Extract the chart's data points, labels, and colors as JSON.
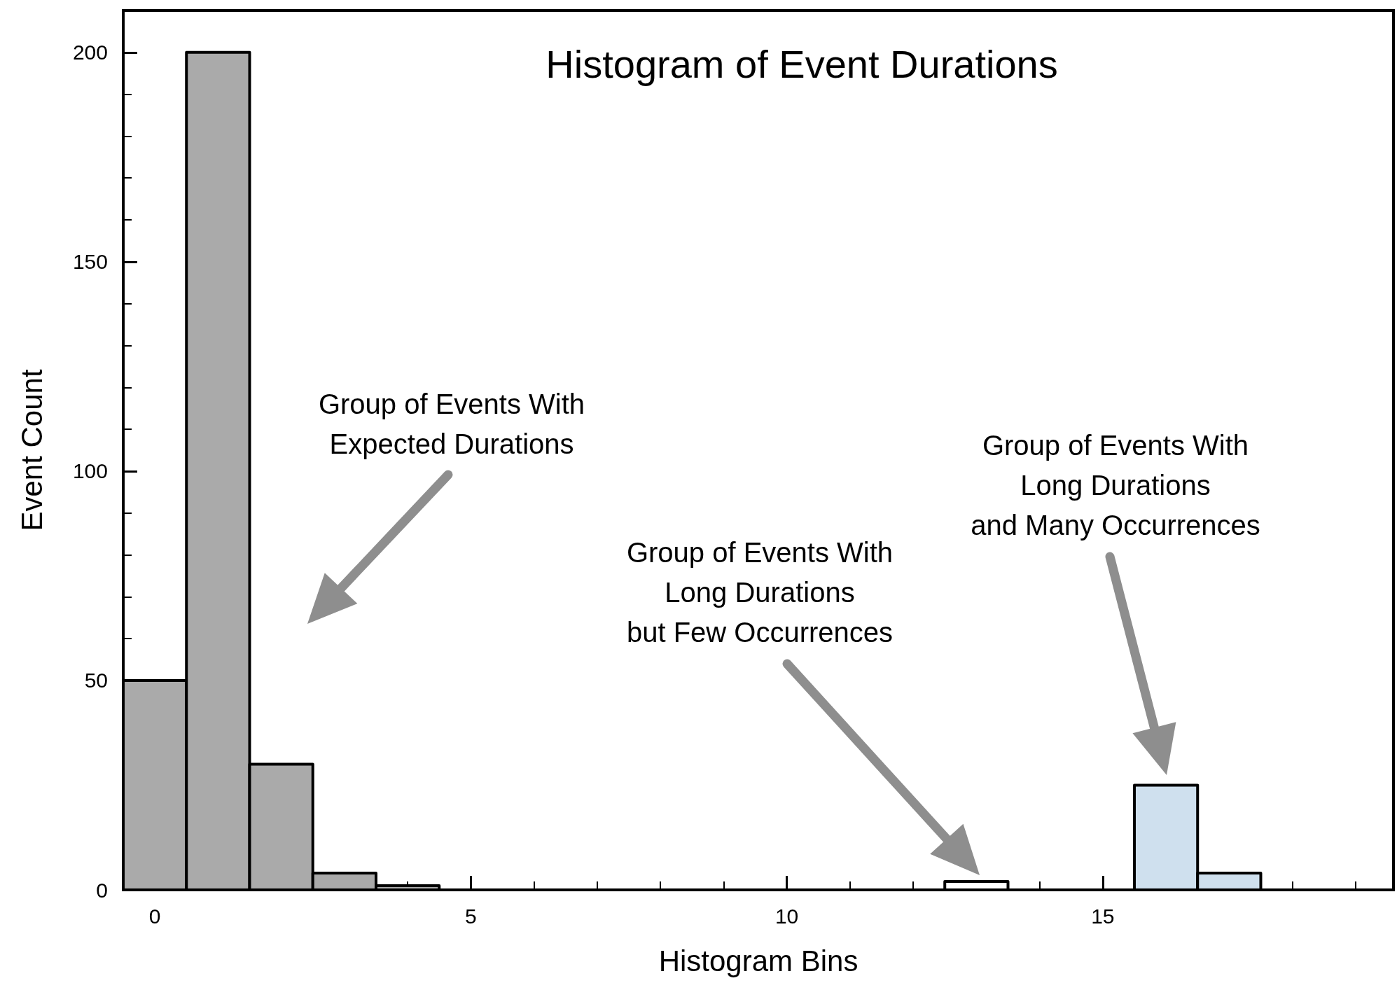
{
  "chart_data": {
    "type": "histogram",
    "title": "Histogram of Event Durations",
    "xlabel": "Histogram Bins",
    "ylabel": "Event Count",
    "bins": [
      -0.5,
      0.5,
      1.5,
      2.5,
      3.5,
      4.5,
      5.5,
      6.5,
      7.5,
      8.5,
      9.5,
      10.5,
      11.5,
      12.5,
      13.5,
      14.5,
      15.5,
      16.5,
      17.5,
      18.5,
      19.5
    ],
    "values": [
      50,
      200,
      30,
      4,
      1,
      0,
      0,
      0,
      0,
      0,
      0,
      0,
      0,
      2,
      0,
      0,
      25,
      4,
      0,
      0
    ],
    "colors": [
      "#aaaaaa",
      "#aaaaaa",
      "#aaaaaa",
      "#aaaaaa",
      "#aaaaaa",
      null,
      null,
      null,
      null,
      null,
      null,
      null,
      null,
      "#ffffff",
      null,
      null,
      "#cfe0ee",
      "#cfe0ee",
      null,
      null
    ],
    "xlim": [
      -0.5,
      19.6
    ],
    "xticks": [
      0,
      {
        "value": 1,
        "label": null
      },
      {
        "value": 2,
        "label": null
      },
      {
        "value": 3,
        "label": null
      },
      {
        "value": 4,
        "label": null
      },
      5,
      {
        "value": 6,
        "label": null
      },
      {
        "value": 7,
        "label": null
      },
      {
        "value": 8,
        "label": null
      },
      {
        "value": 9,
        "label": null
      },
      10,
      {
        "value": 11,
        "label": null
      },
      {
        "value": 12,
        "label": null
      },
      {
        "value": 13,
        "label": null
      },
      {
        "value": 14,
        "label": null
      },
      15,
      {
        "value": 16,
        "label": null
      },
      {
        "value": 17,
        "label": null
      },
      {
        "value": 18,
        "label": null
      },
      {
        "value": 19,
        "label": null
      }
    ],
    "ylim": [
      0,
      210
    ],
    "yticks": [
      0,
      {
        "value": 10,
        "label": null
      },
      {
        "value": 20,
        "label": null
      },
      {
        "value": 30,
        "label": null
      },
      {
        "value": 40,
        "label": null
      },
      50,
      {
        "value": 60,
        "label": null
      },
      {
        "value": 70,
        "label": null
      },
      {
        "value": 80,
        "label": null
      },
      {
        "value": 90,
        "label": null
      },
      100,
      {
        "value": 110,
        "label": null
      },
      {
        "value": 120,
        "label": null
      },
      {
        "value": 130,
        "label": null
      },
      {
        "value": 140,
        "label": null
      },
      150,
      {
        "value": 160,
        "label": null
      },
      {
        "value": 170,
        "label": null
      },
      {
        "value": 180,
        "label": null
      },
      {
        "value": 190,
        "label": null
      },
      200
    ],
    "annotations": [
      "Group of Events With\nExpected Durations",
      "Group of Events With\nLong Durations\nbut Few Occurrences",
      "Group of Events With\nLong Durations\nand Many Occurrences"
    ]
  }
}
